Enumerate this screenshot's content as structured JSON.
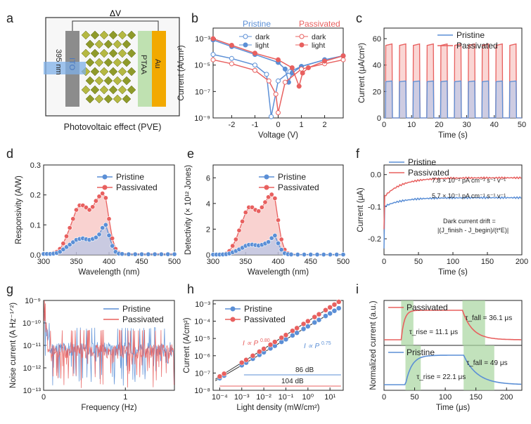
{
  "colors": {
    "pristine": "#5b8fd6",
    "passivated": "#e8605f",
    "pristine_fill": "#a9c4ec",
    "passivated_fill": "#f5b4b0",
    "green": "#a8d5a0",
    "gold": "#f2a900"
  },
  "panel_labels": [
    "a",
    "b",
    "c",
    "d",
    "e",
    "f",
    "g",
    "h",
    "i"
  ],
  "panel_a": {
    "delta_v": "ΔV",
    "ito": "ITO",
    "ptaa": "PTAA",
    "au": "Au",
    "light": "395 nm",
    "caption": "Photovoltaic effect (PVE)"
  },
  "chart_data": [
    {
      "panel": "b",
      "type": "line",
      "xlabel": "Voltage (V)",
      "ylabel": "Current (A/cm²)",
      "xticks": [
        "-2",
        "-1",
        "0",
        "1",
        "2"
      ],
      "yticks": [
        "10⁻⁹",
        "10⁻⁷",
        "10⁻⁵",
        "10⁻³"
      ],
      "xlim": [
        -2.8,
        2.8
      ],
      "ylog": [
        -9,
        -2.2
      ],
      "legend_groups": [
        "Pristine",
        "Passivated"
      ],
      "legend_items": [
        "dark",
        "light",
        "dark",
        "light"
      ],
      "series": [
        {
          "name": "Pristine dark",
          "x": [
            -2.8,
            -2,
            -1,
            -0.5,
            -0.3,
            0,
            0.5,
            1,
            2,
            2.8
          ],
          "logy": [
            -4.2,
            -4.5,
            -5,
            -5.7,
            -8.9,
            -6.2,
            -5.5,
            -5.1,
            -4.6,
            -4.3
          ]
        },
        {
          "name": "Pristine light",
          "x": [
            -2.8,
            -2,
            -1,
            0,
            0.3,
            0.45,
            0.6,
            1,
            2,
            2.8
          ],
          "logy": [
            -3.1,
            -3.6,
            -4.2,
            -4.8,
            -5.3,
            -6.3,
            -5.6,
            -5.1,
            -4.6,
            -4.3
          ]
        },
        {
          "name": "Passivated dark",
          "x": [
            -2.8,
            -2,
            -1,
            -0.4,
            -0.1,
            0,
            0.3,
            1,
            2,
            2.8
          ],
          "logy": [
            -4.6,
            -4.9,
            -5.4,
            -6.2,
            -7.2,
            -8.6,
            -6.3,
            -5.3,
            -4.9,
            -4.6
          ]
        },
        {
          "name": "Passivated light",
          "x": [
            -2.8,
            -2,
            -1,
            0,
            0.6,
            0.9,
            1.05,
            1.3,
            2,
            2.8
          ],
          "logy": [
            -3.0,
            -3.5,
            -4.1,
            -4.6,
            -5.2,
            -6.6,
            -5.6,
            -5.2,
            -4.7,
            -4.3
          ]
        }
      ]
    },
    {
      "panel": "c",
      "type": "line",
      "xlabel": "Time (s)",
      "ylabel": "Current (μA/cm²)",
      "xticks": [
        "0",
        "10",
        "20",
        "30",
        "40",
        "50"
      ],
      "yticks": [
        "0",
        "20",
        "40",
        "60"
      ],
      "xlim": [
        0,
        50
      ],
      "ylim": [
        0,
        68
      ],
      "series": [
        {
          "name": "Pristine",
          "on_level": 28
        },
        {
          "name": "Passivated",
          "on_level": 56
        }
      ],
      "period_s": 5,
      "cycles": 10
    },
    {
      "panel": "d",
      "type": "area",
      "xlabel": "Wavelength (nm)",
      "ylabel": "Responsivity (A/W)",
      "xticks": [
        "300",
        "350",
        "400",
        "450",
        "500"
      ],
      "yticks": [
        "0.0",
        "0.1",
        "0.2",
        "0.3"
      ],
      "xlim": [
        300,
        500
      ],
      "ylim": [
        0,
        0.3
      ],
      "x": [
        300,
        305,
        310,
        315,
        320,
        325,
        330,
        335,
        340,
        345,
        350,
        355,
        360,
        365,
        370,
        375,
        380,
        385,
        390,
        395,
        400,
        405,
        410,
        415,
        420,
        430,
        440,
        450,
        460,
        470,
        480,
        490,
        500
      ],
      "series": [
        {
          "name": "Pristine",
          "values": [
            0.003,
            0.003,
            0.003,
            0.004,
            0.006,
            0.01,
            0.018,
            0.026,
            0.034,
            0.042,
            0.05,
            0.053,
            0.055,
            0.052,
            0.05,
            0.053,
            0.058,
            0.068,
            0.09,
            0.1,
            0.065,
            0.03,
            0.01,
            0.004,
            0.003,
            0.002,
            0.002,
            0.002,
            0.002,
            0.002,
            0.002,
            0.002,
            0.002
          ]
        },
        {
          "name": "Passivated",
          "values": [
            0.004,
            0.004,
            0.004,
            0.006,
            0.01,
            0.02,
            0.038,
            0.062,
            0.09,
            0.12,
            0.15,
            0.165,
            0.165,
            0.158,
            0.15,
            0.16,
            0.18,
            0.195,
            0.205,
            0.19,
            0.12,
            0.055,
            0.02,
            0.007,
            0.004,
            0.003,
            0.003,
            0.003,
            0.003,
            0.003,
            0.003,
            0.003,
            0.003
          ]
        }
      ]
    },
    {
      "panel": "e",
      "type": "area",
      "xlabel": "Wavelength (nm)",
      "ylabel": "Detectivity (× 10¹² Jones)",
      "xticks": [
        "300",
        "350",
        "400",
        "450",
        "500"
      ],
      "yticks": [
        "0",
        "2",
        "4",
        "6"
      ],
      "xlim": [
        300,
        500
      ],
      "ylim": [
        0,
        7
      ],
      "x": [
        300,
        305,
        310,
        315,
        320,
        325,
        330,
        335,
        340,
        345,
        350,
        355,
        360,
        365,
        370,
        375,
        380,
        385,
        390,
        395,
        400,
        405,
        410,
        415,
        420,
        430,
        440,
        450,
        460,
        470,
        480,
        490,
        500
      ],
      "series": [
        {
          "name": "Pristine",
          "values": [
            0.02,
            0.02,
            0.02,
            0.03,
            0.05,
            0.1,
            0.2,
            0.3,
            0.42,
            0.55,
            0.7,
            0.78,
            0.8,
            0.76,
            0.72,
            0.78,
            0.88,
            1.0,
            1.3,
            1.5,
            0.9,
            0.4,
            0.12,
            0.05,
            0.03,
            0.02,
            0.02,
            0.02,
            0.02,
            0.02,
            0.02,
            0.02,
            0.02
          ]
        },
        {
          "name": "Passivated",
          "values": [
            0.03,
            0.03,
            0.03,
            0.05,
            0.1,
            0.3,
            0.7,
            1.2,
            1.9,
            2.6,
            3.3,
            3.7,
            3.7,
            3.5,
            3.4,
            3.7,
            4.1,
            4.5,
            4.7,
            4.4,
            2.7,
            1.2,
            0.4,
            0.12,
            0.05,
            0.03,
            0.03,
            0.03,
            0.03,
            0.03,
            0.03,
            0.03,
            0.03
          ]
        }
      ]
    },
    {
      "panel": "f",
      "type": "line",
      "xlabel": "Time (s)",
      "ylabel": "Current (μA)",
      "xticks": [
        "0",
        "50",
        "100",
        "150",
        "200"
      ],
      "yticks": [
        "-0.2",
        "-0.1",
        "0.0"
      ],
      "xlim": [
        0,
        200
      ],
      "ylim": [
        -0.25,
        0.03
      ],
      "series": [
        {
          "name": "Pristine",
          "start": -0.1,
          "end": -0.072
        },
        {
          "name": "Passivated",
          "start": -0.07,
          "end": -0.01
        }
      ],
      "annotations": [
        "7.8 × 10⁻² pA cm⁻¹ s⁻¹ v⁻¹",
        "5.7 × 10⁻¹ pA cm⁻¹ s⁻¹ v⁻¹",
        "Dark current drift =",
        "|(J_finish - J_begin)/(t*E)|"
      ]
    },
    {
      "panel": "g",
      "type": "line",
      "xlabel": "Frequency (Hz)",
      "ylabel": "Noise current (A Hz⁻¹ᐟ²)",
      "xticks": [
        "0",
        "1"
      ],
      "yticks": [
        "10⁻¹³",
        "10⁻¹²",
        "10⁻¹¹",
        "10⁻¹⁰",
        "10⁻⁹"
      ],
      "xlim": [
        0,
        1.6
      ],
      "ylog": [
        -13,
        -9
      ],
      "series": [
        {
          "name": "Pristine",
          "base_log": -11.2
        },
        {
          "name": "Passivated",
          "base_log": -11.3
        }
      ]
    },
    {
      "panel": "h",
      "type": "scatter",
      "xlabel": "Light density (mW/cm²)",
      "ylabel": "Current (A/cm²)",
      "xticks": [
        "10⁻⁴",
        "10⁻³",
        "10⁻²",
        "10⁻¹",
        "10⁰",
        "10¹"
      ],
      "yticks": [
        "10⁻⁸",
        "10⁻⁷",
        "10⁻⁶",
        "10⁻⁵",
        "10⁻⁴",
        "10⁻³"
      ],
      "xlog": [
        -4.3,
        1.6
      ],
      "ylog": [
        -8,
        -2.8
      ],
      "series": [
        {
          "name": "Pristine",
          "slope": 0.75,
          "logx": [
            -4,
            -3.8,
            -3,
            -2.8,
            -2.5,
            -2.2,
            -2,
            -1.7,
            -1.5,
            -1.2,
            -1,
            -0.7,
            -0.5,
            -0.2,
            0,
            0.3,
            0.5,
            0.8,
            1,
            1.2,
            1.4
          ],
          "logy0": -7.0
        },
        {
          "name": "Passivated",
          "slope": 0.8,
          "logx": [
            -4,
            -3.8,
            -3,
            -2.8,
            -2.5,
            -2.2,
            -2,
            -1.7,
            -1.5,
            -1.2,
            -1,
            -0.7,
            -0.5,
            -0.2,
            0,
            0.3,
            0.5,
            0.8,
            1,
            1.2,
            1.4
          ],
          "logy0": -6.9
        }
      ],
      "annotations": {
        "fit_passivated": "I ∝ P",
        "exp_passivated": "0.80",
        "fit_pristine": "I ∝ P",
        "exp_pristine": "0.75",
        "dr1": "86 dB",
        "dr2": "104 dB"
      }
    },
    {
      "panel": "i",
      "type": "line",
      "xlabel": "Time (μs)",
      "ylabel": "Normalized current (a.u.)",
      "xticks": [
        "0",
        "50",
        "100",
        "150",
        "200"
      ],
      "xlim": [
        0,
        225
      ],
      "series": [
        {
          "name": "Passivated",
          "rise": "τ_rise = 11.1 μs",
          "fall": "τ_fall = 36.1 μs"
        },
        {
          "name": "Pristine",
          "rise": "τ_rise = 22.1 μs",
          "fall": "τ_fall = 49 μs"
        }
      ]
    }
  ]
}
